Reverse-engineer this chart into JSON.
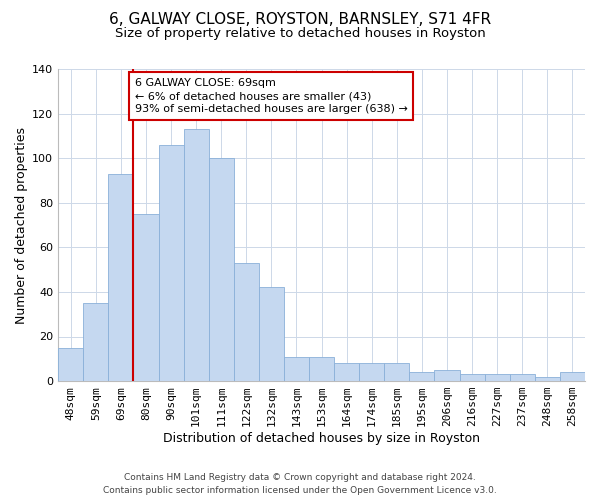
{
  "title": "6, GALWAY CLOSE, ROYSTON, BARNSLEY, S71 4FR",
  "subtitle": "Size of property relative to detached houses in Royston",
  "xlabel": "Distribution of detached houses by size in Royston",
  "ylabel": "Number of detached properties",
  "bar_labels": [
    "48sqm",
    "59sqm",
    "69sqm",
    "80sqm",
    "90sqm",
    "101sqm",
    "111sqm",
    "122sqm",
    "132sqm",
    "143sqm",
    "153sqm",
    "164sqm",
    "174sqm",
    "185sqm",
    "195sqm",
    "206sqm",
    "216sqm",
    "227sqm",
    "237sqm",
    "248sqm",
    "258sqm"
  ],
  "bar_values": [
    15,
    35,
    93,
    75,
    106,
    113,
    100,
    53,
    42,
    11,
    11,
    8,
    8,
    8,
    4,
    5,
    3,
    3,
    3,
    2,
    4
  ],
  "bar_color": "#c5d8f0",
  "bar_edge_color": "#8ab0d8",
  "vline_color": "#cc0000",
  "vline_x": 2.5,
  "annotation_text": "6 GALWAY CLOSE: 69sqm\n← 6% of detached houses are smaller (43)\n93% of semi-detached houses are larger (638) →",
  "annotation_box_facecolor": "#ffffff",
  "annotation_box_edgecolor": "#cc0000",
  "ylim": [
    0,
    140
  ],
  "yticks": [
    0,
    20,
    40,
    60,
    80,
    100,
    120,
    140
  ],
  "footer": "Contains HM Land Registry data © Crown copyright and database right 2024.\nContains public sector information licensed under the Open Government Licence v3.0.",
  "background_color": "#ffffff",
  "grid_color": "#cdd8e8",
  "title_fontsize": 11,
  "subtitle_fontsize": 9.5,
  "axis_label_fontsize": 9,
  "tick_fontsize": 8,
  "annotation_fontsize": 8,
  "footer_fontsize": 6.5
}
